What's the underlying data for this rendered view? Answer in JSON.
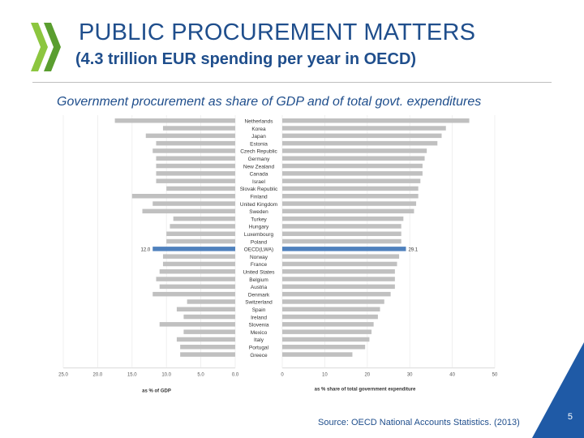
{
  "header": {
    "title": "PUBLIC PROCUREMENT MATTERS",
    "subtitle": "(4.3 trillion EUR spending per year in OECD)",
    "caption": "Government procurement as share of GDP and of total govt. expenditures"
  },
  "footer": {
    "source": "Source: OECD National Accounts Statistics. (2013)",
    "page_number": "5"
  },
  "colors": {
    "bar": "#c0c0c0",
    "highlight": "#4f81bd",
    "title": "#1f4e8c",
    "corner": "#1f5aa6"
  },
  "chart_data": {
    "type": "bar",
    "orientation": "horizontal",
    "highlight_category": "OECD(LWA)",
    "categories": [
      "Netherlands",
      "Korea",
      "Japan",
      "Estonia",
      "Czech Republic",
      "Germany",
      "New Zealand",
      "Canada",
      "Israel",
      "Slovak Republic",
      "Finland",
      "United Kingdom",
      "Sweden",
      "Turkey",
      "Hungary",
      "Luxembourg",
      "Poland",
      "OECD(LWA)",
      "Norway",
      "France",
      "United States",
      "Belgium",
      "Austria",
      "Denmark",
      "Switzerland",
      "Spain",
      "Ireland",
      "Slovenia",
      "Mexico",
      "Italy",
      "Portugal",
      "Greece"
    ],
    "series": [
      {
        "label": "as % of GDP",
        "direction": "left",
        "values": [
          17.5,
          10.5,
          13.0,
          11.5,
          12.0,
          11.5,
          11.5,
          11.5,
          11.5,
          10.0,
          15.0,
          12.0,
          13.5,
          9.0,
          9.5,
          10.0,
          10.0,
          12.0,
          10.5,
          10.5,
          11.0,
          11.5,
          11.0,
          12.0,
          7.0,
          8.5,
          7.5,
          11.0,
          7.5,
          8.5,
          8.0,
          8.0
        ],
        "axis_ticks": [
          "25.0",
          "20.0",
          "15.0",
          "10.0",
          "5.0",
          "0.0"
        ],
        "xlim": [
          0,
          25
        ]
      },
      {
        "label": "as % share of total government expenditure",
        "direction": "right",
        "values": [
          44.0,
          38.5,
          37.5,
          36.5,
          34.0,
          33.5,
          33.0,
          33.0,
          32.5,
          32.0,
          32.0,
          31.5,
          31.0,
          28.5,
          28.0,
          28.0,
          28.0,
          29.1,
          27.5,
          27.0,
          26.5,
          26.5,
          26.5,
          25.5,
          24.0,
          23.0,
          22.5,
          21.5,
          21.0,
          20.5,
          19.5,
          16.5
        ],
        "axis_ticks": [
          "0",
          "10",
          "20",
          "30",
          "40",
          "50"
        ],
        "xlim": [
          0,
          50
        ]
      }
    ],
    "data_labels": {
      "left": "12.0",
      "right": "29.1"
    }
  }
}
